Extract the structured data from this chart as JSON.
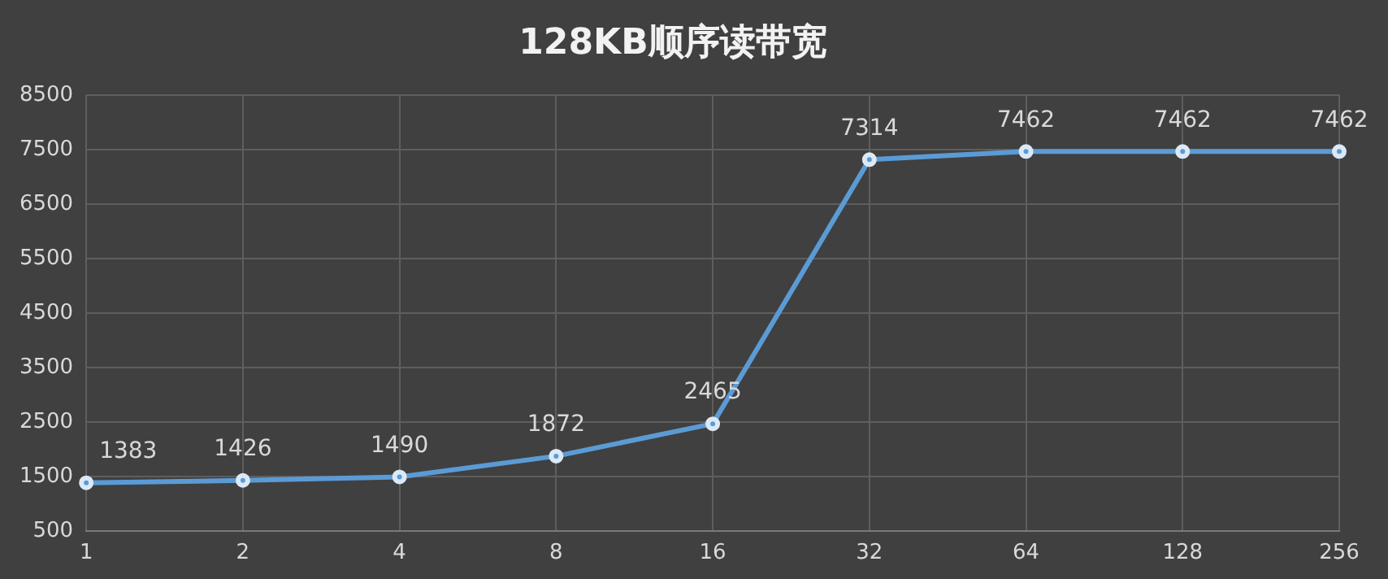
{
  "chart_data": {
    "type": "line",
    "title": "128KB顺序读带宽",
    "categories": [
      "1",
      "2",
      "4",
      "8",
      "16",
      "32",
      "64",
      "128",
      "256"
    ],
    "series": [
      {
        "color": "#5b9bd5",
        "values": [
          1383,
          1426,
          1490,
          1872,
          2465,
          7314,
          7462,
          7462,
          7462
        ]
      }
    ],
    "ylim": [
      500,
      8500
    ],
    "yticks": [
      500,
      1500,
      2500,
      3500,
      4500,
      5500,
      6500,
      7500,
      8500
    ],
    "grid": true,
    "legend": false,
    "marker": "circle",
    "line_style": "solid",
    "data_labels": true
  }
}
